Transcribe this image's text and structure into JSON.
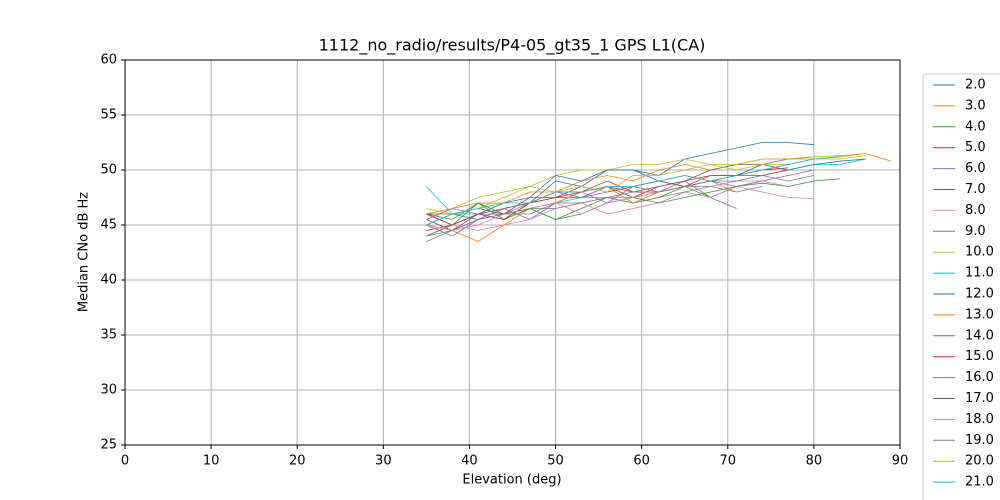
{
  "chart_data": {
    "type": "line",
    "title": "1112_no_radio/results/P4-05_gt35_1 GPS L1(CA)",
    "xlabel": "Elevation (deg)",
    "ylabel": "Median CNo dB Hz",
    "x": [
      35,
      38,
      41,
      44,
      47,
      50,
      53,
      56,
      59,
      62,
      65,
      68,
      71,
      74,
      77,
      80,
      83,
      86,
      89
    ],
    "xlim": [
      0,
      90
    ],
    "xticks": [
      0,
      10,
      20,
      30,
      40,
      50,
      60,
      70,
      80,
      90
    ],
    "ylim": [
      25,
      60
    ],
    "yticks": [
      25,
      30,
      35,
      40,
      45,
      50,
      55,
      60
    ],
    "grid": true,
    "legend": "right",
    "series": [
      {
        "name": "2.0",
        "color": "#1f77b4",
        "values": [
          45,
          46,
          45.5,
          46.5,
          47,
          49,
          48.5,
          50,
          50,
          49.5,
          51,
          51.5,
          52,
          52.5,
          52.5,
          52.3,
          null,
          null,
          null
        ]
      },
      {
        "name": "3.0",
        "color": "#ff7f0e",
        "values": [
          46,
          46.5,
          47,
          47,
          48,
          48,
          49,
          49.5,
          49,
          50,
          50.5,
          50,
          50.5,
          51,
          51,
          51,
          51.2,
          51.5,
          50.8
        ]
      },
      {
        "name": "4.0",
        "color": "#2ca02c",
        "values": [
          46,
          45.5,
          47,
          46,
          46.5,
          45.5,
          46.5,
          47.5,
          47,
          47.5,
          48.5,
          47.5,
          48.5,
          48.8,
          48.5,
          49,
          49.2,
          null,
          null
        ]
      },
      {
        "name": "5.0",
        "color": "#d62728",
        "values": [
          44.5,
          45,
          46,
          45.5,
          47,
          48,
          48,
          48.5,
          47.5,
          48.5,
          49,
          49.5,
          49.5,
          50,
          50.2,
          null,
          null,
          null,
          null
        ]
      },
      {
        "name": "6.0",
        "color": "#9467bd",
        "values": [
          45,
          44,
          45.5,
          46.5,
          45.5,
          47,
          48,
          47,
          48.5,
          48,
          49,
          47.5,
          46.5,
          null,
          null,
          null,
          null,
          null,
          null
        ]
      },
      {
        "name": "7.0",
        "color": "#8c564b",
        "values": [
          45.5,
          44.5,
          46,
          46.5,
          47,
          47.5,
          47.5,
          48.5,
          48,
          48.5,
          49,
          50,
          50.5,
          50.5,
          51,
          51.2,
          null,
          null,
          null
        ]
      },
      {
        "name": "8.0",
        "color": "#e377c2",
        "values": [
          44,
          45,
          44.5,
          45,
          45.5,
          46.5,
          47,
          46,
          46.5,
          47,
          48,
          47.5,
          48.5,
          48,
          47.5,
          47.4,
          null,
          null,
          null
        ]
      },
      {
        "name": "9.0",
        "color": "#7f7f7f",
        "values": [
          43.5,
          44.5,
          45.5,
          46,
          46,
          47,
          47,
          47.5,
          47,
          47.5,
          48,
          48.5,
          48,
          48.5,
          null,
          null,
          null,
          null,
          null
        ]
      },
      {
        "name": "10.0",
        "color": "#bcbd22",
        "values": [
          45.5,
          46.5,
          47.5,
          48,
          48.5,
          49.5,
          50,
          50,
          50.5,
          50.5,
          51,
          50.5,
          50.5,
          51,
          51,
          51.2,
          51.3,
          51.5,
          null
        ]
      },
      {
        "name": "11.0",
        "color": "#17becf",
        "values": [
          48.5,
          46,
          46,
          45.5,
          46.5,
          47,
          47.5,
          47.5,
          47.5,
          48,
          48.5,
          48.5,
          49,
          49.5,
          50,
          50.5,
          50.5,
          51,
          null
        ]
      },
      {
        "name": "12.0",
        "color": "#1f77b4",
        "values": [
          46,
          45,
          46,
          47,
          47.5,
          49.5,
          49,
          50,
          50,
          49,
          48.5,
          49,
          49.5,
          50.5,
          50,
          50.5,
          50.8,
          51,
          null
        ]
      },
      {
        "name": "13.0",
        "color": "#ff7f0e",
        "values": [
          45,
          44.5,
          43.5,
          45,
          46.5,
          47,
          48,
          48.5,
          47,
          48,
          48.5,
          49,
          48,
          null,
          null,
          null,
          null,
          null,
          null
        ]
      },
      {
        "name": "14.0",
        "color": "#2ca02c",
        "values": [
          44,
          45,
          47,
          45.5,
          46.5,
          45.5,
          46,
          47,
          47.5,
          47,
          47.5,
          48,
          48.5,
          49,
          null,
          null,
          null,
          null,
          null
        ]
      },
      {
        "name": "15.0",
        "color": "#d62728",
        "values": [
          46,
          45,
          46,
          45.5,
          47,
          47.5,
          48,
          49,
          48,
          48,
          48.5,
          49,
          49.5,
          49.5,
          50,
          null,
          null,
          null,
          null
        ]
      },
      {
        "name": "16.0",
        "color": "#9467bd",
        "values": [
          45.5,
          46.5,
          46,
          46,
          47,
          48,
          47.5,
          48,
          48.5,
          49,
          49.5,
          49,
          48.5,
          49,
          49.5,
          50,
          null,
          null,
          null
        ]
      },
      {
        "name": "17.0",
        "color": "#8c564b",
        "values": [
          46,
          46,
          46.5,
          46,
          47.5,
          47.5,
          48.5,
          48,
          48.5,
          49,
          48.5,
          49.5,
          49.5,
          50,
          50.5,
          null,
          null,
          null,
          null
        ]
      },
      {
        "name": "18.0",
        "color": "#e377c2",
        "values": [
          45,
          44.5,
          45,
          46,
          46.5,
          47,
          46,
          47,
          47.5,
          48,
          48.5,
          48.5,
          49,
          49,
          48.5,
          null,
          null,
          null,
          null
        ]
      },
      {
        "name": "19.0",
        "color": "#7f7f7f",
        "values": [
          44,
          44.5,
          45.5,
          46,
          46.5,
          46.5,
          47,
          47.5,
          48,
          48,
          48.5,
          49,
          49,
          49.5,
          49,
          49.5,
          null,
          null,
          null
        ]
      },
      {
        "name": "20.0",
        "color": "#bcbd22",
        "values": [
          46.5,
          46,
          46.5,
          47.5,
          48.5,
          48,
          48.5,
          48,
          49.5,
          49.5,
          50,
          50.5,
          50,
          50.5,
          50.5,
          51,
          51,
          51.3,
          null
        ]
      },
      {
        "name": "21.0",
        "color": "#17becf",
        "values": [
          45,
          46,
          46.5,
          47,
          47,
          48,
          48,
          48.5,
          48.5,
          49,
          49.5,
          49,
          49.5,
          50,
          50.5,
          51,
          51.2,
          null,
          null
        ]
      }
    ]
  }
}
